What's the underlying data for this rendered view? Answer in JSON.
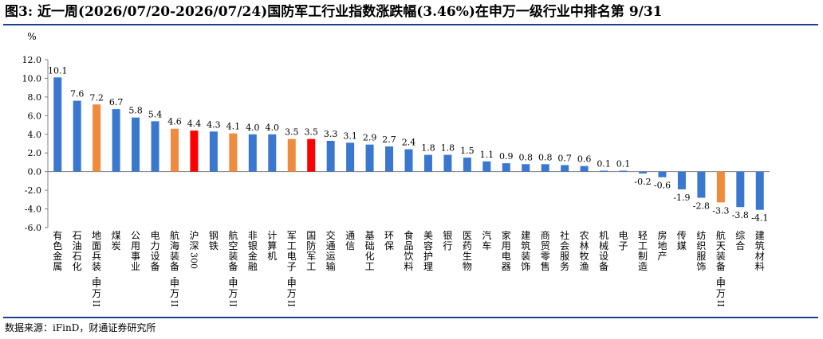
{
  "title": "图3: 近一周(2026/07/20-2026/07/24)国防军工行业指数涨跌幅(3.46%)在申万一级行业中排名第 9/31",
  "source": "数据来源：iFinD，财通证券研究所",
  "colors": {
    "default": "#3a78cf",
    "defense_sub": "#f08a3c",
    "highlight": "#ff0000",
    "rule": "#1f3f8f"
  },
  "chart_data": {
    "type": "bar",
    "ylabel": "%",
    "ylim": [
      -6,
      12
    ],
    "yticks": [
      "12.0",
      "10.0",
      "8.0",
      "6.0",
      "4.0",
      "2.0",
      "0.0",
      "-2.0",
      "-4.0",
      "-6.0"
    ],
    "grid": false,
    "legend": "none",
    "categories": [
      "有色金属",
      "石油石化",
      "地面兵装Ⅱ",
      "煤炭",
      "公用事业",
      "电力设备",
      "航海装备Ⅱ",
      "沪深300",
      "钢铁",
      "航空装备Ⅱ",
      "非银金融",
      "计算机",
      "军工电子Ⅱ",
      "国防军工",
      "交通运输",
      "通信",
      "基础化工",
      "环保",
      "食品饮料",
      "美容护理",
      "银行",
      "医药生物",
      "汽车",
      "家用电器",
      "建筑装饰",
      "商贸零售",
      "社会服务",
      "农林牧渔",
      "机械设备",
      "电子",
      "轻工制造",
      "房地产",
      "传媒",
      "纺织服饰",
      "航天装备Ⅱ",
      "综合",
      "建筑材料"
    ],
    "axis_labels": [
      "有色金属",
      "石油石化",
      "地面兵装-申万II",
      "煤炭",
      "公用事业",
      "电力设备",
      "航海装备-申万II",
      "沪深300",
      "钢铁",
      "航空装备-申万II",
      "非银金融",
      "计算机",
      "军工电子-申万II",
      "国防军工",
      "交通运输",
      "通信",
      "基础化工",
      "环保",
      "食品饮料",
      "美容护理",
      "银行",
      "医药生物",
      "汽车",
      "家用电器",
      "建筑装饰",
      "商贸零售",
      "社会服务",
      "农林牧渔",
      "机械设备",
      "电子",
      "轻工制造",
      "房地产",
      "传媒",
      "纺织服饰",
      "航天装备-申万II",
      "综合",
      "建筑材料"
    ],
    "values": [
      10.1,
      7.6,
      7.2,
      6.7,
      5.8,
      5.4,
      4.6,
      4.4,
      4.3,
      4.1,
      4.0,
      4.0,
      3.5,
      3.5,
      3.3,
      3.1,
      2.9,
      2.7,
      2.4,
      1.8,
      1.8,
      1.5,
      1.1,
      0.9,
      0.8,
      0.8,
      0.7,
      0.6,
      0.1,
      0.1,
      -0.2,
      -0.6,
      -1.9,
      -2.8,
      -3.3,
      -3.8,
      -4.1
    ],
    "data_labels": [
      "10.1",
      "7.6",
      "7.2",
      "6.7",
      "5.8",
      "5.4",
      "4.6",
      "4.4",
      "4.3",
      "4.1",
      "4.0",
      "4.0",
      "3.5",
      "3.5",
      "3.3",
      "3.1",
      "2.9",
      "2.7",
      "2.4",
      "1.8",
      "1.8",
      "1.5",
      "1.1",
      "0.9",
      "0.8",
      "0.8",
      "0.7",
      "0.6",
      "0.1",
      "0.1",
      "-0.2",
      "-0.6",
      "-1.9",
      "-2.8",
      "-3.3",
      "-3.8",
      "-4.1"
    ],
    "bar_colors": [
      "default",
      "default",
      "defense_sub",
      "default",
      "default",
      "default",
      "defense_sub",
      "highlight",
      "default",
      "defense_sub",
      "default",
      "default",
      "defense_sub",
      "highlight",
      "default",
      "default",
      "default",
      "default",
      "default",
      "default",
      "default",
      "default",
      "default",
      "default",
      "default",
      "default",
      "default",
      "default",
      "default",
      "default",
      "default",
      "default",
      "default",
      "default",
      "defense_sub",
      "default",
      "default"
    ]
  }
}
